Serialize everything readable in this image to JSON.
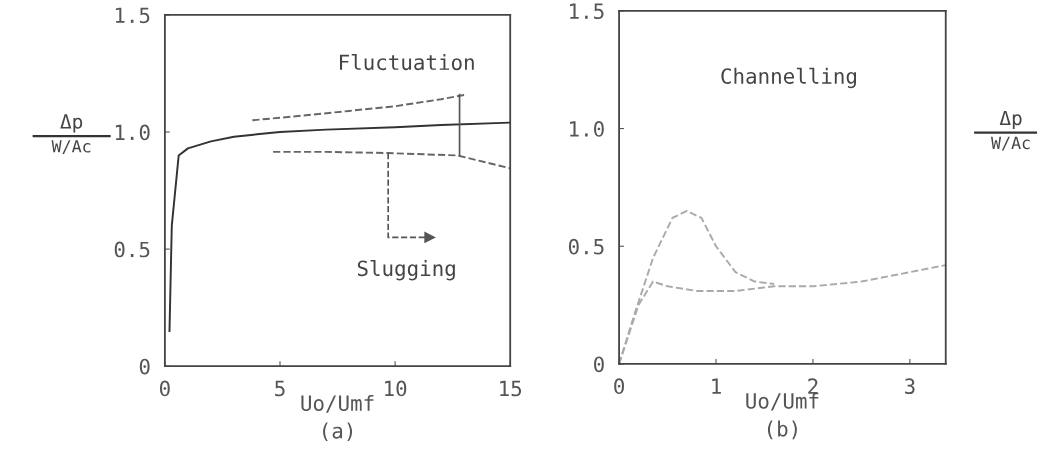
{
  "chart_data": [
    {
      "type": "line",
      "title": "(a)",
      "xlabel": "Uo/Umf",
      "ylabel": "Δp\nW/Ac",
      "xlim": [
        0,
        15
      ],
      "ylim": [
        0,
        1.5
      ],
      "xticks": [
        0,
        5,
        10,
        15
      ],
      "yticks": [
        0,
        0.5,
        {
          "value": 1.0,
          "label": "1.0"
        },
        1.5
      ],
      "grid": false,
      "legend": false,
      "annotations": [
        {
          "text": "Fluctuation",
          "x": 12.8,
          "y": 1.16
        },
        {
          "text": "Slugging",
          "x": 9.7,
          "y": 0.91
        }
      ],
      "series": [
        {
          "color": "#333333",
          "line_style": "solid",
          "x": [
            0.2,
            0.3,
            0.6,
            1,
            2,
            3,
            4,
            5,
            7,
            10,
            12,
            15
          ],
          "values": [
            0.15,
            0.6,
            0.9,
            0.93,
            0.96,
            0.98,
            0.99,
            1.0,
            1.01,
            1.02,
            1.03,
            1.04
          ]
        },
        {
          "color": "#666666",
          "line_style": "dashed",
          "x": [
            3.8,
            6,
            8,
            10,
            12,
            13.1
          ],
          "values": [
            1.05,
            1.07,
            1.09,
            1.11,
            1.14,
            1.16
          ]
        },
        {
          "color": "#666666",
          "line_style": "dashed",
          "x": [
            4.7,
            7,
            9.7,
            12.7,
            15
          ],
          "values": [
            0.915,
            0.915,
            0.91,
            0.9,
            0.845
          ]
        }
      ]
    },
    {
      "type": "line",
      "title": "(b)",
      "xlabel": "Uo/Umf",
      "ylabel": "Δp\nW/Ac",
      "xlim": [
        0,
        3.37
      ],
      "ylim": [
        0,
        1.5
      ],
      "xticks": [
        0,
        1,
        2,
        3
      ],
      "yticks": [
        0,
        0.5,
        {
          "value": 1.0,
          "label": "1.0"
        },
        1.5
      ],
      "grid": false,
      "legend": false,
      "annotations": [
        "Channelling"
      ],
      "series": [
        {
          "color": "#aaaaaa",
          "line_style": "dashed",
          "x": [
            0,
            0.15,
            0.35,
            0.55,
            0.7,
            0.85,
            1.0,
            1.2,
            1.4,
            1.6
          ],
          "values": [
            0,
            0.2,
            0.45,
            0.62,
            0.65,
            0.62,
            0.5,
            0.39,
            0.35,
            0.34
          ]
        },
        {
          "color": "#aaaaaa",
          "line_style": "dashed",
          "x": [
            0,
            0.2,
            0.35,
            0.5,
            0.8,
            1.2,
            1.6,
            2.0,
            2.5,
            3.0,
            3.37
          ],
          "values": [
            0,
            0.25,
            0.35,
            0.33,
            0.31,
            0.31,
            0.33,
            0.33,
            0.35,
            0.39,
            0.42
          ]
        }
      ]
    }
  ]
}
